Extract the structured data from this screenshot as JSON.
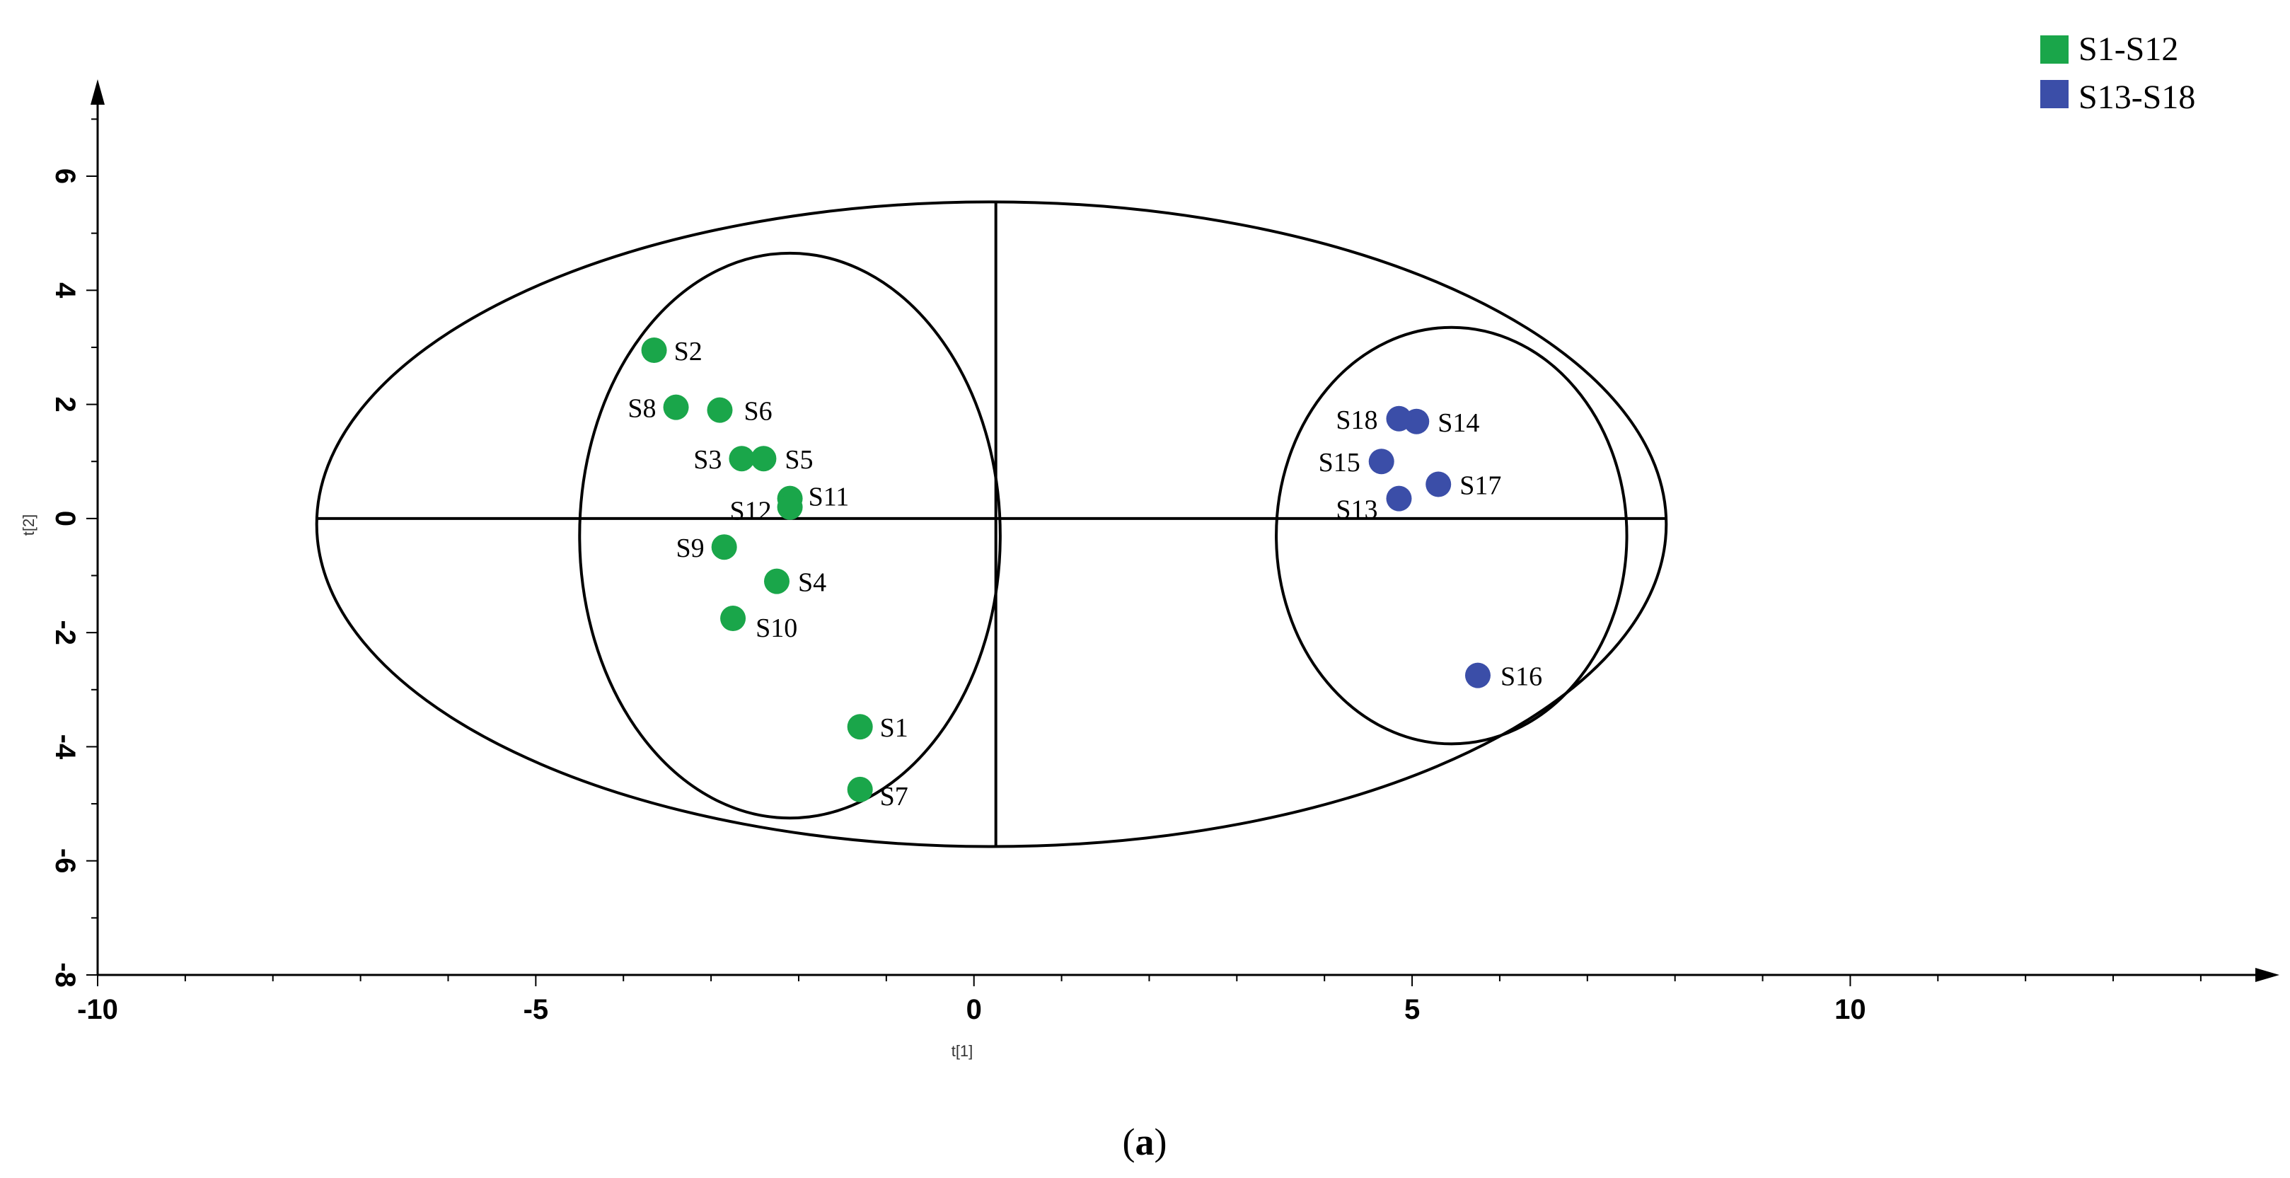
{
  "chart_data": {
    "type": "scatter",
    "xlabel": "t[1]",
    "ylabel": "t[2]",
    "xlim": [
      -10,
      14.8
    ],
    "ylim": [
      -8,
      7.6
    ],
    "xticks": [
      -10,
      -5,
      0,
      5,
      10
    ],
    "yticks": [
      -8,
      -6,
      -4,
      -2,
      0,
      2,
      4,
      6
    ],
    "xtick_labels": [
      "-10",
      "-5",
      "0",
      "5",
      "10"
    ],
    "ytick_labels": [
      "-8",
      "-6",
      "-4",
      "-2",
      "0",
      "2",
      "4",
      "6"
    ],
    "legend_position": "top-right",
    "series": [
      {
        "name": "S1-S12",
        "color": "#1aa64a",
        "points": [
          {
            "label": "S1",
            "x": -1.3,
            "y": -3.65
          },
          {
            "label": "S2",
            "x": -3.65,
            "y": 2.95
          },
          {
            "label": "S3",
            "x": -2.65,
            "y": 1.05
          },
          {
            "label": "S4",
            "x": -2.25,
            "y": -1.1
          },
          {
            "label": "S5",
            "x": -2.4,
            "y": 1.05
          },
          {
            "label": "S6",
            "x": -2.9,
            "y": 1.9
          },
          {
            "label": "S7",
            "x": -1.3,
            "y": -4.75
          },
          {
            "label": "S8",
            "x": -3.4,
            "y": 1.95
          },
          {
            "label": "S9",
            "x": -2.85,
            "y": -0.5
          },
          {
            "label": "S10",
            "x": -2.75,
            "y": -1.75
          },
          {
            "label": "S11",
            "x": -2.1,
            "y": 0.35
          },
          {
            "label": "S12",
            "x": -2.1,
            "y": 0.2
          }
        ]
      },
      {
        "name": "S13-S18",
        "color": "#3b4ea8",
        "points": [
          {
            "label": "S13",
            "x": 4.85,
            "y": 0.35
          },
          {
            "label": "S14",
            "x": 5.05,
            "y": 1.7
          },
          {
            "label": "S15",
            "x": 4.65,
            "y": 1.0
          },
          {
            "label": "S16",
            "x": 5.75,
            "y": -2.75
          },
          {
            "label": "S17",
            "x": 5.3,
            "y": 0.6
          },
          {
            "label": "S18",
            "x": 4.85,
            "y": 1.75
          }
        ]
      }
    ],
    "ellipses": [
      {
        "cx": 0.2,
        "cy": -0.1,
        "rx": 7.7,
        "ry": 5.65
      },
      {
        "cx": -2.1,
        "cy": -0.3,
        "rx": 2.4,
        "ry": 4.95
      },
      {
        "cx": 5.45,
        "cy": -0.3,
        "rx": 2.0,
        "ry": 3.65
      }
    ],
    "cross_lines": {
      "x": 0.25,
      "y": 0.0
    }
  },
  "caption": {
    "open": "(",
    "letter": "a",
    "close": ")"
  }
}
